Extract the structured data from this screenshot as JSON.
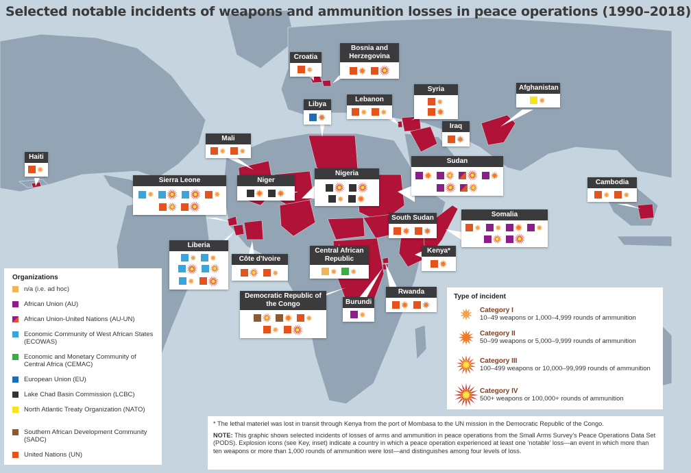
{
  "title": "Selected notable incidents of weapons and ammunition losses in peace operations (1990–2018)",
  "colors": {
    "ocean": "#c5d4df",
    "land": "#8ea0b0",
    "highlight": "#b01238",
    "NA": "#f2b553",
    "AU": "#8c1e8c",
    "AU-UN": "split-purple-red",
    "ECOWAS": "#3aa5dd",
    "CEMAC": "#3bab45",
    "EU": "#1f6db3",
    "LCBC": "#333333",
    "NATO": "#f7e51c",
    "SADC": "#8b5a32",
    "UN": "#e4531e"
  },
  "organizations": {
    "heading": "Organizations",
    "items": [
      {
        "key": "NA",
        "label": "n/a (i.e. ad hoc)"
      },
      {
        "key": "AU",
        "label": "African Union (AU)"
      },
      {
        "key": "AU-UN",
        "label": "African Union-United Nations (AU-UN)"
      },
      {
        "key": "ECOWAS",
        "label": "Economic Community of West African States (ECOWAS)"
      },
      {
        "key": "CEMAC",
        "label": "Economic and Monetary Community of Central Africa (CEMAC)"
      },
      {
        "key": "EU",
        "label": "European Union (EU)"
      },
      {
        "key": "LCBC",
        "label": "Lake Chad Basin Commission (LCBC)"
      },
      {
        "key": "NATO",
        "label": "North Atlantic Treaty Organization (NATO)"
      },
      {
        "key": "SADC",
        "label": "Southern African Development Community (SADC)"
      },
      {
        "key": "UN",
        "label": "United Nations (UN)"
      }
    ]
  },
  "incident_types": {
    "heading": "Type of incident",
    "items": [
      {
        "level": 1,
        "name": "Category I",
        "desc": "10–49 weapons or 1,000–4,999 rounds of ammunition"
      },
      {
        "level": 2,
        "name": "Category II",
        "desc": "50–99 weapons or 5,000–9,999 rounds of ammunition"
      },
      {
        "level": 3,
        "name": "Category III",
        "desc": "100–499 weapons or 10,000–99,999 rounds of ammunition"
      },
      {
        "level": 4,
        "name": "Category IV",
        "desc": "500+ weapons or 100,000+ rounds of ammunition"
      }
    ]
  },
  "countries": [
    {
      "name": "Haiti",
      "incidents": [
        [
          "UN",
          1
        ]
      ]
    },
    {
      "name": "Croatia",
      "incidents": [
        [
          "UN",
          1
        ]
      ]
    },
    {
      "name": "Bosnia and Herzegovina",
      "incidents": [
        [
          "UN",
          2
        ],
        [
          "UN",
          4
        ]
      ]
    },
    {
      "name": "Libya",
      "incidents": [
        [
          "EU",
          2
        ]
      ]
    },
    {
      "name": "Lebanon",
      "incidents": [
        [
          "UN",
          1
        ],
        [
          "UN",
          1
        ]
      ]
    },
    {
      "name": "Syria",
      "incidents": [
        [
          "UN",
          1
        ],
        [
          "UN",
          2
        ]
      ]
    },
    {
      "name": "Afghanistan",
      "incidents": [
        [
          "NATO",
          1
        ]
      ]
    },
    {
      "name": "Iraq",
      "incidents": [
        [
          "UN",
          2
        ]
      ]
    },
    {
      "name": "Mali",
      "incidents": [
        [
          "UN",
          1
        ],
        [
          "UN",
          1
        ]
      ]
    },
    {
      "name": "Sierra Leone",
      "incidents": [
        [
          "ECOWAS",
          1
        ],
        [
          "ECOWAS",
          4
        ],
        [
          "ECOWAS",
          4
        ],
        [
          "UN",
          1
        ],
        [
          "UN",
          3
        ],
        [
          "UN",
          4
        ]
      ]
    },
    {
      "name": "Niger",
      "incidents": [
        [
          "LCBC",
          2
        ],
        [
          "LCBC",
          2
        ]
      ]
    },
    {
      "name": "Nigeria",
      "incidents": [
        [
          "LCBC",
          4
        ],
        [
          "LCBC",
          4
        ],
        [
          "LCBC",
          1
        ],
        [
          "LCBC",
          2
        ]
      ]
    },
    {
      "name": "Sudan",
      "incidents": [
        [
          "AU",
          2
        ],
        [
          "AU",
          3
        ],
        [
          "AU-UN",
          4
        ],
        [
          "AU",
          2
        ],
        [
          "AU",
          4
        ],
        [
          "AU-UN",
          3
        ]
      ]
    },
    {
      "name": "Cambodia",
      "incidents": [
        [
          "UN",
          1
        ],
        [
          "UN",
          1
        ]
      ]
    },
    {
      "name": "South Sudan",
      "incidents": [
        [
          "UN",
          2
        ],
        [
          "UN",
          2
        ]
      ]
    },
    {
      "name": "Somalia",
      "incidents": [
        [
          "UN",
          1
        ],
        [
          "AU",
          1
        ],
        [
          "AU",
          2
        ],
        [
          "AU",
          1
        ],
        [
          "AU",
          3
        ],
        [
          "AU",
          4
        ]
      ]
    },
    {
      "name": "Liberia",
      "incidents": [
        [
          "ECOWAS",
          1
        ],
        [
          "ECOWAS",
          1
        ],
        [
          "ECOWAS",
          4
        ],
        [
          "ECOWAS",
          3
        ],
        [
          "ECOWAS",
          1
        ],
        [
          "UN",
          4
        ]
      ]
    },
    {
      "name": "Côte d’Ivoire",
      "incidents": [
        [
          "UN",
          3
        ],
        [
          "UN",
          1
        ]
      ]
    },
    {
      "name": "Central African Republic",
      "incidents": [
        [
          "NA",
          1
        ],
        [
          "CEMAC",
          1
        ]
      ]
    },
    {
      "name": "Kenya*",
      "incidents": [
        [
          "UN",
          2
        ]
      ]
    },
    {
      "name": "Democratic Republic of the Congo",
      "incidents": [
        [
          "SADC",
          3
        ],
        [
          "SADC",
          2
        ],
        [
          "UN",
          1
        ],
        [
          "UN",
          1
        ],
        [
          "UN",
          4
        ]
      ]
    },
    {
      "name": "Burundi",
      "incidents": [
        [
          "AU",
          1
        ]
      ]
    },
    {
      "name": "Rwanda",
      "incidents": [
        [
          "UN",
          2
        ],
        [
          "UN",
          2
        ]
      ]
    }
  ],
  "notes": {
    "footnote": "* The lethal materiel was lost in transit through Kenya from the port of Mombasa to the UN mission in the Democratic Republic of the Congo.",
    "note_label": "NOTE:",
    "note_text": " This graphic shows selected incidents of losses of arms and ammunition in peace operations from the Small Arms Survey’s Peace Operations Data Set (PODS). Explosion icons (see Key, inset) indicate a country in which a peace operation experienced at least one ‘notable’ loss—an event in which more than ten weapons or more than 1,000 rounds of ammunition were lost—and distinguishes among four levels of loss."
  }
}
